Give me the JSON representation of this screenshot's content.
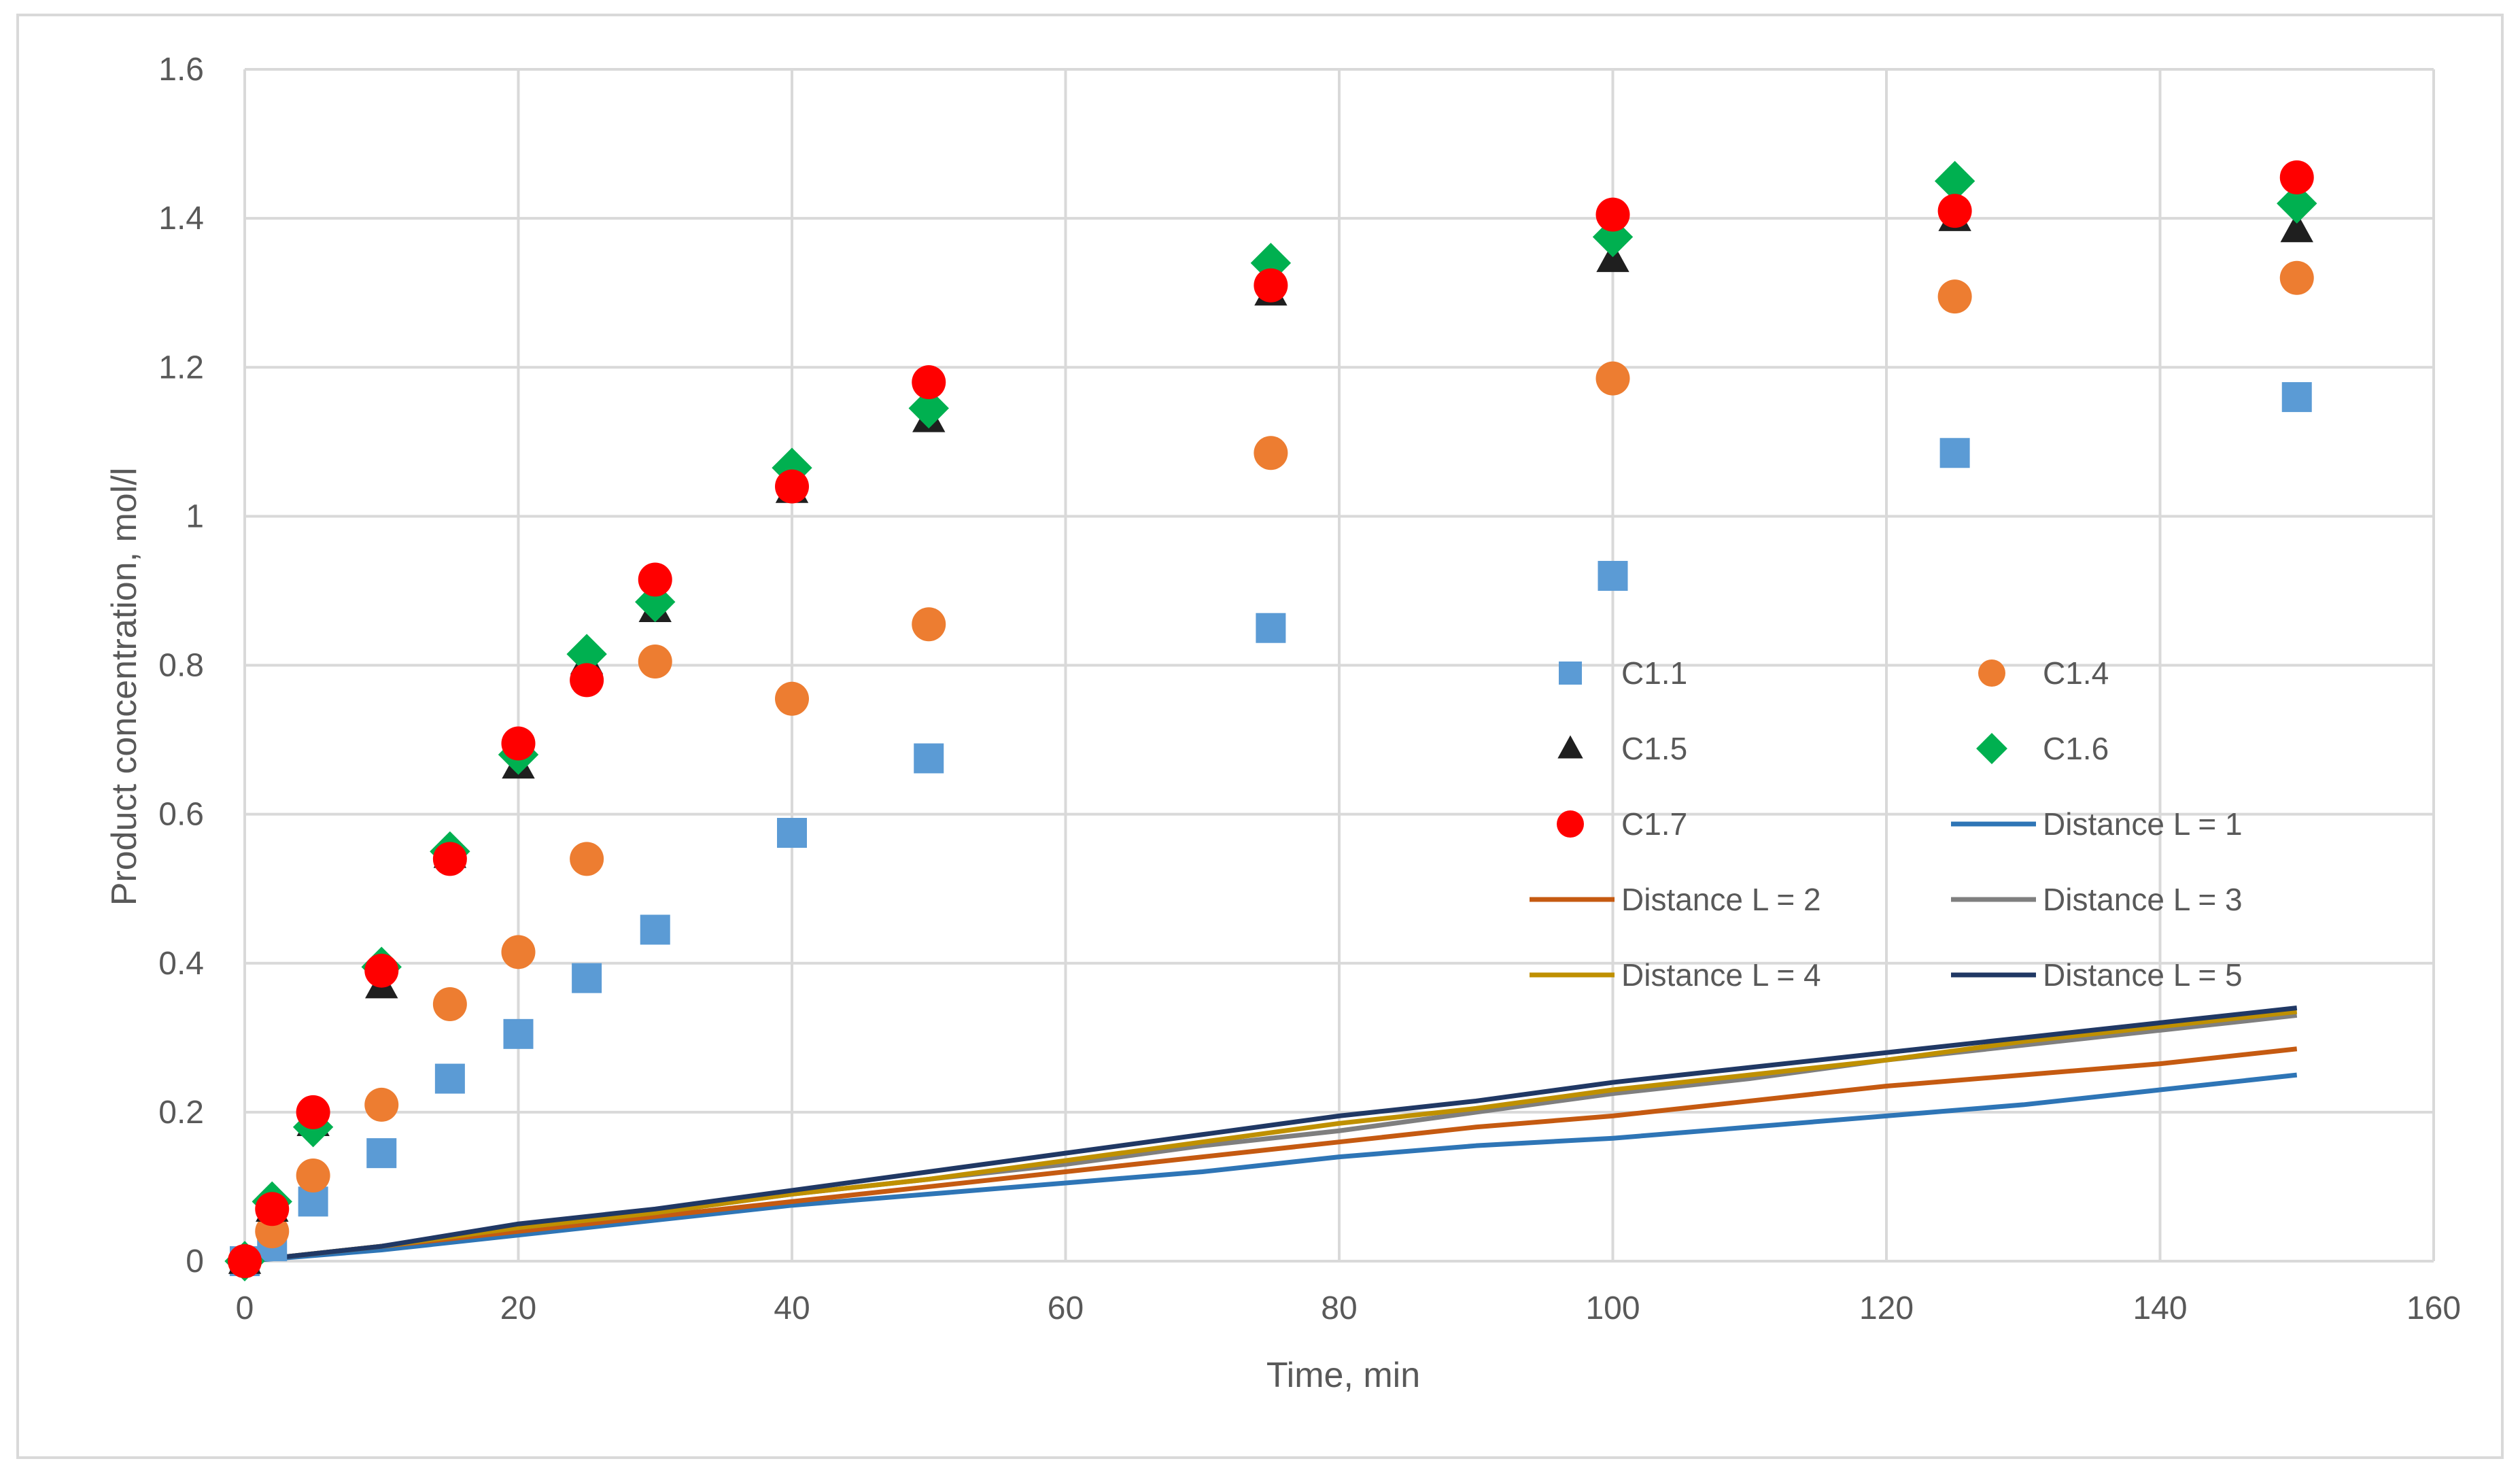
{
  "chart_data": {
    "type": "scatter",
    "title": "",
    "xlabel": "Time, min",
    "ylabel": "Product concentration, mol/l",
    "xlim": [
      0,
      160
    ],
    "ylim": [
      0,
      1.6
    ],
    "xticks": [
      0,
      20,
      40,
      60,
      80,
      100,
      120,
      140,
      160
    ],
    "yticks": [
      {
        "value": 0,
        "label": "0"
      },
      {
        "value": 0.2,
        "label": "0.2"
      },
      {
        "value": 0.4,
        "label": "0.4"
      },
      {
        "value": 0.6,
        "label": "0.6"
      },
      {
        "value": 0.8,
        "label": "0.8"
      },
      {
        "value": 1.0,
        "label": "1"
      },
      {
        "value": 1.2,
        "label": "1.2"
      },
      {
        "value": 1.4,
        "label": "1.4"
      },
      {
        "value": 1.6,
        "label": "1.6"
      }
    ],
    "grid": true,
    "legend_position": "center-right",
    "scatter_series": [
      {
        "name": "C1.1",
        "marker": "square",
        "color": "#5B9BD5",
        "x": [
          0,
          2,
          5,
          10,
          15,
          20,
          25,
          30,
          40,
          50,
          75,
          100,
          125,
          150
        ],
        "y": [
          0,
          0.02,
          0.08,
          0.145,
          0.245,
          0.305,
          0.38,
          0.445,
          0.575,
          0.675,
          0.85,
          0.92,
          1.085,
          1.16
        ]
      },
      {
        "name": "C1.4",
        "marker": "circle",
        "color": "#ED7D31",
        "x": [
          0,
          2,
          5,
          10,
          15,
          20,
          25,
          30,
          40,
          50,
          75,
          100,
          125,
          150
        ],
        "y": [
          0,
          0.04,
          0.115,
          0.21,
          0.345,
          0.415,
          0.54,
          0.805,
          0.755,
          0.855,
          1.085,
          1.185,
          1.295,
          1.32
        ]
      },
      {
        "name": "C1.5",
        "marker": "triangle",
        "color": "#1F1F1F",
        "x": [
          0,
          2,
          5,
          10,
          15,
          20,
          25,
          30,
          40,
          50,
          75,
          100,
          125,
          150
        ],
        "y": [
          0,
          0.07,
          0.185,
          0.37,
          0.545,
          0.665,
          0.805,
          0.875,
          1.035,
          1.13,
          1.3,
          1.345,
          1.4,
          1.385
        ]
      },
      {
        "name": "C1.6",
        "marker": "diamond",
        "color": "#00B050",
        "x": [
          0,
          2,
          5,
          10,
          15,
          20,
          25,
          30,
          40,
          50,
          75,
          100,
          125,
          150
        ],
        "y": [
          0,
          0.08,
          0.18,
          0.395,
          0.55,
          0.68,
          0.815,
          0.885,
          1.065,
          1.145,
          1.34,
          1.375,
          1.45,
          1.42
        ]
      },
      {
        "name": "C1.7",
        "marker": "circle",
        "color": "#FF0000",
        "x": [
          0,
          2,
          5,
          10,
          15,
          20,
          25,
          30,
          40,
          50,
          75,
          100,
          125,
          150
        ],
        "y": [
          0,
          0.07,
          0.2,
          0.39,
          0.54,
          0.695,
          0.78,
          0.915,
          1.04,
          1.18,
          1.31,
          1.405,
          1.41,
          1.455
        ]
      }
    ],
    "line_series": [
      {
        "name": "Distance L = 1",
        "color": "#2E75B6",
        "x": [
          0,
          10,
          20,
          30,
          40,
          50,
          60,
          70,
          80,
          90,
          100,
          110,
          120,
          130,
          140,
          150
        ],
        "y": [
          0,
          0.015,
          0.035,
          0.055,
          0.075,
          0.09,
          0.105,
          0.12,
          0.14,
          0.155,
          0.165,
          0.18,
          0.195,
          0.21,
          0.23,
          0.25
        ]
      },
      {
        "name": "Distance L = 2",
        "color": "#C55A11",
        "x": [
          0,
          10,
          20,
          30,
          40,
          50,
          60,
          70,
          80,
          90,
          100,
          110,
          120,
          130,
          140,
          150
        ],
        "y": [
          0,
          0.02,
          0.04,
          0.06,
          0.08,
          0.1,
          0.12,
          0.14,
          0.16,
          0.18,
          0.195,
          0.215,
          0.235,
          0.25,
          0.265,
          0.285
        ]
      },
      {
        "name": "Distance L = 3",
        "color": "#7F7F7F",
        "x": [
          0,
          10,
          20,
          30,
          40,
          50,
          60,
          70,
          80,
          90,
          100,
          110,
          120,
          130,
          140,
          150
        ],
        "y": [
          0,
          0.02,
          0.045,
          0.065,
          0.09,
          0.11,
          0.13,
          0.155,
          0.175,
          0.2,
          0.225,
          0.245,
          0.27,
          0.29,
          0.31,
          0.33
        ]
      },
      {
        "name": "Distance L = 4",
        "color": "#BF9000",
        "x": [
          0,
          10,
          20,
          30,
          40,
          50,
          60,
          70,
          80,
          90,
          100,
          110,
          120,
          130,
          140,
          150
        ],
        "y": [
          0,
          0.02,
          0.045,
          0.065,
          0.09,
          0.11,
          0.135,
          0.16,
          0.185,
          0.205,
          0.23,
          0.25,
          0.27,
          0.295,
          0.315,
          0.335
        ]
      },
      {
        "name": "Distance L = 5",
        "color": "#203864",
        "x": [
          0,
          10,
          20,
          30,
          40,
          50,
          60,
          70,
          80,
          90,
          100,
          110,
          120,
          130,
          140,
          150
        ],
        "y": [
          0,
          0.02,
          0.05,
          0.07,
          0.095,
          0.12,
          0.145,
          0.17,
          0.195,
          0.215,
          0.24,
          0.26,
          0.28,
          0.3,
          0.32,
          0.34
        ]
      }
    ],
    "legend": [
      {
        "label": "C1.1",
        "kind": "marker",
        "marker": "square",
        "color": "#5B9BD5"
      },
      {
        "label": "C1.4",
        "kind": "marker",
        "marker": "circle",
        "color": "#ED7D31"
      },
      {
        "label": "C1.5",
        "kind": "marker",
        "marker": "triangle",
        "color": "#1F1F1F"
      },
      {
        "label": "C1.6",
        "kind": "marker",
        "marker": "diamond",
        "color": "#00B050"
      },
      {
        "label": "C1.7",
        "kind": "marker",
        "marker": "circle",
        "color": "#FF0000"
      },
      {
        "label": "Distance L = 1",
        "kind": "line",
        "color": "#2E75B6"
      },
      {
        "label": "Distance L = 2",
        "kind": "line",
        "color": "#C55A11"
      },
      {
        "label": "Distance L = 3",
        "kind": "line",
        "color": "#7F7F7F"
      },
      {
        "label": "Distance L = 4",
        "kind": "line",
        "color": "#BF9000"
      },
      {
        "label": "Distance L = 5",
        "kind": "line",
        "color": "#203864"
      }
    ]
  }
}
